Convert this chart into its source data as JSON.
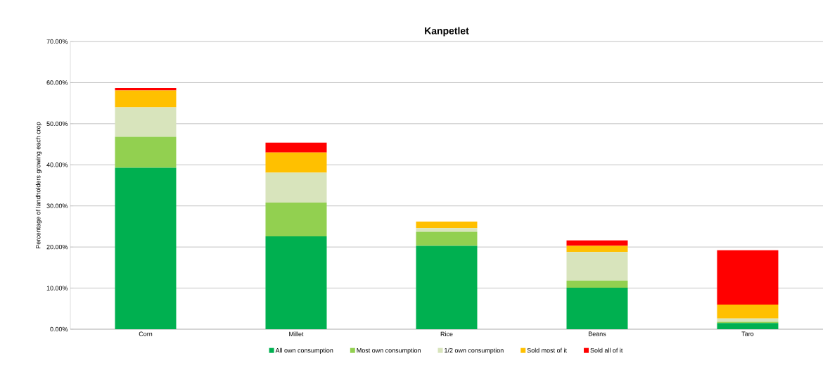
{
  "chart_data": {
    "type": "bar",
    "title": "Kanpetlet",
    "ylabel": "Percentage of landholders growing each crop",
    "categories": [
      "Corn",
      "Millet",
      "Rice",
      "Beans",
      "Taro"
    ],
    "stacked": true,
    "grid": "y",
    "legend": "bottom",
    "ylim": [
      0,
      70
    ],
    "yticks": [
      {
        "value": 0,
        "label": "0.00%"
      },
      {
        "value": 10,
        "label": "10.00%"
      },
      {
        "value": 20,
        "label": "20.00%"
      },
      {
        "value": 30,
        "label": "30.00%"
      },
      {
        "value": 40,
        "label": "40.00%"
      },
      {
        "value": 50,
        "label": "50.00%"
      },
      {
        "value": 60,
        "label": "60.00%"
      },
      {
        "value": 70,
        "label": "70.00%"
      }
    ],
    "series": [
      {
        "name": "All own consumption",
        "color": "#00b050",
        "values": [
          39.3,
          22.6,
          20.3,
          10.1,
          1.5
        ]
      },
      {
        "name": "Most own consumption",
        "color": "#92d050",
        "values": [
          7.5,
          8.2,
          3.4,
          1.7,
          0.3
        ]
      },
      {
        "name": "1/2 own consumption",
        "color": "#d8e4bc",
        "values": [
          7.2,
          7.3,
          0.9,
          7.0,
          0.8
        ]
      },
      {
        "name": "Sold most of it",
        "color": "#ffc000",
        "values": [
          4.1,
          4.9,
          1.6,
          1.5,
          3.4
        ]
      },
      {
        "name": "Sold all of it",
        "color": "#ff0000",
        "values": [
          0.6,
          2.4,
          0,
          1.3,
          13.2
        ]
      }
    ]
  }
}
